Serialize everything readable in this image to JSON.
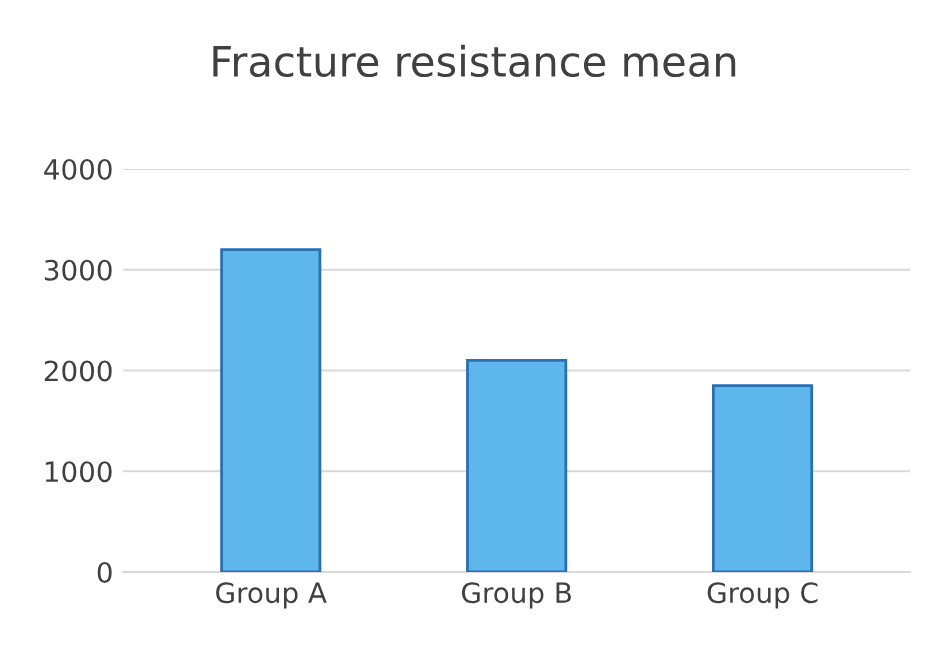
{
  "chart_data": {
    "type": "bar",
    "title": "Fracture resistance mean",
    "categories": [
      "Group A",
      "Group B",
      "Group C"
    ],
    "values": [
      3200,
      2100,
      1850
    ],
    "color": "#5db6ec",
    "ylim": [
      0,
      4000
    ],
    "yticks": [
      0,
      1000,
      2000,
      3000,
      4000
    ],
    "grid": "y"
  }
}
